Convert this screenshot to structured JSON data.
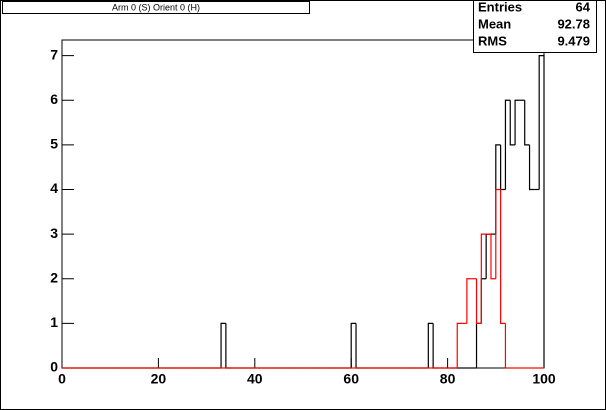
{
  "chart_data": {
    "type": "histogram",
    "title": "Arm 0 (S) Orient 0 (H)",
    "bins": [
      0,
      1,
      2,
      3,
      4,
      5,
      6,
      7,
      8,
      9,
      10,
      11,
      12,
      13,
      14,
      15,
      16,
      17,
      18,
      19,
      20,
      21,
      22,
      23,
      24,
      25,
      26,
      27,
      28,
      29,
      30,
      31,
      32,
      33,
      34,
      35,
      36,
      37,
      38,
      39,
      40,
      41,
      42,
      43,
      44,
      45,
      46,
      47,
      48,
      49,
      50,
      51,
      52,
      53,
      54,
      55,
      56,
      57,
      58,
      59,
      60,
      61,
      62,
      63,
      64,
      65,
      66,
      67,
      68,
      69,
      70,
      71,
      72,
      73,
      74,
      75,
      76,
      77,
      78,
      79,
      80,
      81,
      82,
      83,
      84,
      85,
      86,
      87,
      88,
      89,
      90,
      91,
      92,
      93,
      94,
      95,
      96,
      97,
      98,
      99,
      100
    ],
    "series": [
      {
        "color": "#000000",
        "values": [
          0,
          0,
          0,
          0,
          0,
          0,
          0,
          0,
          0,
          0,
          0,
          0,
          0,
          0,
          0,
          0,
          0,
          0,
          0,
          0,
          0,
          0,
          0,
          0,
          0,
          0,
          0,
          0,
          0,
          0,
          0,
          0,
          0,
          1,
          0,
          0,
          0,
          0,
          0,
          0,
          0,
          0,
          0,
          0,
          0,
          0,
          0,
          0,
          0,
          0,
          0,
          0,
          0,
          0,
          0,
          0,
          0,
          0,
          0,
          0,
          1,
          0,
          0,
          0,
          0,
          0,
          0,
          0,
          0,
          0,
          0,
          0,
          0,
          0,
          0,
          0,
          1,
          0,
          0,
          0,
          0,
          0,
          0,
          0,
          0,
          0,
          1,
          2,
          3,
          3,
          5,
          4,
          6,
          5,
          6,
          6,
          5,
          4,
          4,
          7
        ]
      },
      {
        "color": "#ff0000",
        "values": [
          0,
          0,
          0,
          0,
          0,
          0,
          0,
          0,
          0,
          0,
          0,
          0,
          0,
          0,
          0,
          0,
          0,
          0,
          0,
          0,
          0,
          0,
          0,
          0,
          0,
          0,
          0,
          0,
          0,
          0,
          0,
          0,
          0,
          0,
          0,
          0,
          0,
          0,
          0,
          0,
          0,
          0,
          0,
          0,
          0,
          0,
          0,
          0,
          0,
          0,
          0,
          0,
          0,
          0,
          0,
          0,
          0,
          0,
          0,
          0,
          0,
          0,
          0,
          0,
          0,
          0,
          0,
          0,
          0,
          0,
          0,
          0,
          0,
          0,
          0,
          0,
          0,
          0,
          0,
          0,
          0,
          0,
          1,
          1,
          2,
          2,
          1,
          3,
          3,
          2,
          4,
          1,
          0,
          0,
          0,
          0,
          0,
          0,
          0,
          0
        ]
      }
    ],
    "xlim": [
      0,
      100
    ],
    "xticks": [
      0,
      20,
      40,
      60,
      80,
      100
    ],
    "ylim": [
      0,
      7.35
    ],
    "yticks": [
      0,
      1,
      2,
      3,
      4,
      5,
      6,
      7
    ],
    "stats": [
      {
        "label": "Entries",
        "value": 64
      },
      {
        "label": "Mean",
        "value": 92.78
      },
      {
        "label": "RMS",
        "value": 9.479
      }
    ]
  }
}
